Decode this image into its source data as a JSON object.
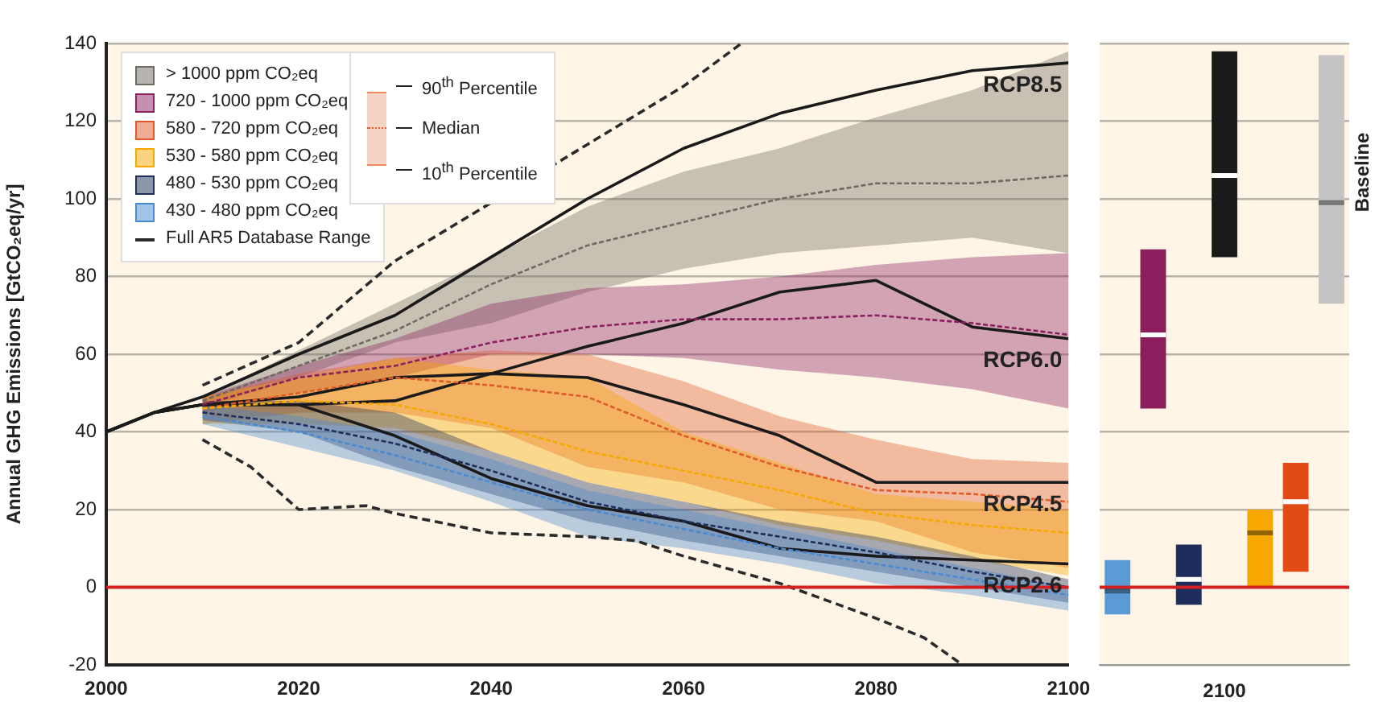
{
  "chart_data": [
    {
      "type": "line",
      "ylabel": "Annual GHG Emissions [GtCO₂eq/yr]",
      "xlim": [
        2000,
        2100
      ],
      "xticks": [
        2000,
        2020,
        2040,
        2060,
        2080,
        2100
      ],
      "ylim": [
        -20,
        140
      ],
      "yticks": [
        -20,
        0,
        20,
        40,
        60,
        80,
        100,
        120,
        140
      ],
      "grid": "y",
      "legend": "top left",
      "marker": "none",
      "annotations": [
        "90$^{th}$ Percentile",
        "Median",
        "10$^{th}$ Percentile"
      ],
      "ref_lines": [
        {
          "axis": "y",
          "value": 0,
          "color": "#d42020"
        }
      ],
      "series": [
        {
          "name": "> 1000 ppm CO₂eq",
          "color": "#6e6a62",
          "line_style": "dotted",
          "x": [
            2010,
            2020,
            2030,
            2040,
            2050,
            2060,
            2070,
            2080,
            2090,
            2100
          ],
          "values": [
            48,
            57,
            66,
            78,
            88,
            94,
            100,
            104,
            104,
            106
          ],
          "lower": [
            46,
            54,
            63,
            68,
            76,
            82,
            86,
            88,
            90,
            86
          ],
          "upper": [
            49,
            61,
            73,
            85,
            98,
            107,
            113,
            121,
            128,
            138
          ]
        },
        {
          "name": "720 - 1000 ppm CO₂eq",
          "color": "#8b2060",
          "line_style": "dotted",
          "x": [
            2010,
            2020,
            2030,
            2040,
            2050,
            2060,
            2070,
            2080,
            2090,
            2100
          ],
          "values": [
            47,
            54,
            57,
            63,
            67,
            69,
            69,
            70,
            68,
            65
          ],
          "lower": [
            45,
            50,
            54,
            60,
            60,
            59,
            56,
            54,
            51,
            46
          ],
          "upper": [
            49,
            57,
            64,
            73,
            77,
            78,
            80,
            83,
            85,
            86
          ]
        },
        {
          "name": "580 - 720 ppm CO₂eq",
          "color": "#e05a2a",
          "line_style": "dotted",
          "x": [
            2010,
            2020,
            2030,
            2040,
            2050,
            2060,
            2070,
            2080,
            2090,
            2100
          ],
          "values": [
            46,
            50,
            54,
            52,
            49,
            39,
            31,
            25,
            24,
            22
          ],
          "lower": [
            42,
            45,
            45,
            41,
            31,
            27,
            20,
            17,
            9,
            5
          ],
          "upper": [
            49,
            55,
            59,
            61,
            60,
            53,
            44,
            38,
            33,
            32
          ]
        },
        {
          "name": "530 - 580 ppm CO₂eq",
          "color": "#f5a800",
          "line_style": "dotted",
          "x": [
            2010,
            2020,
            2030,
            2040,
            2050,
            2060,
            2070,
            2080,
            2090,
            2100
          ],
          "values": [
            46,
            48,
            47,
            42,
            35,
            30,
            25,
            19,
            16,
            14
          ],
          "lower": [
            42,
            42,
            41,
            35,
            27,
            22,
            16,
            12,
            7,
            3
          ],
          "upper": [
            49,
            54,
            59,
            56,
            54,
            40,
            32,
            24,
            22,
            20
          ]
        },
        {
          "name": "480 - 530 ppm CO₂eq",
          "color": "#1e2d5a",
          "line_style": "dotted",
          "x": [
            2010,
            2020,
            2030,
            2040,
            2050,
            2060,
            2070,
            2080,
            2090,
            2100
          ],
          "values": [
            45,
            42,
            37,
            30,
            22,
            17,
            13,
            9,
            4,
            0
          ],
          "lower": [
            43,
            40,
            31,
            24,
            17,
            12,
            8,
            4,
            0,
            -4
          ],
          "upper": [
            48,
            48,
            45,
            35,
            27,
            22,
            17,
            13,
            8,
            2
          ]
        },
        {
          "name": "430 - 480 ppm CO₂eq",
          "color": "#4a8ad0",
          "line_style": "dotted",
          "x": [
            2010,
            2020,
            2030,
            2040,
            2050,
            2060,
            2070,
            2080,
            2090,
            2100
          ],
          "values": [
            44,
            40,
            34,
            27,
            20,
            15,
            10,
            6,
            2,
            -2
          ],
          "lower": [
            42,
            36,
            30,
            22,
            13,
            10,
            6,
            1,
            -2,
            -6
          ],
          "upper": [
            47,
            44,
            40,
            33,
            25,
            20,
            15,
            10,
            5,
            0
          ]
        },
        {
          "name": "Full AR5 Database Range",
          "color": "#2a2a2a",
          "line_style": "dashed",
          "x": [
            2010,
            2020,
            2030,
            2040,
            2050,
            2060,
            2066
          ],
          "values": [
            52,
            63,
            84,
            99,
            114,
            129,
            140
          ]
        },
        {
          "color": "#2a2a2a",
          "line_style": "dashed",
          "x": [
            2010,
            2015,
            2020,
            2027,
            2030,
            2040,
            2050,
            2055,
            2060,
            2070,
            2080,
            2085,
            2089
          ],
          "values": [
            38,
            31,
            20,
            21,
            19,
            14,
            13,
            12,
            8,
            1,
            -8,
            -13,
            -20
          ]
        },
        {
          "name": "RCP8.5",
          "color": "#1a1a1a",
          "line_style": "solid",
          "x": [
            2000,
            2005,
            2010,
            2020,
            2030,
            2040,
            2050,
            2060,
            2070,
            2080,
            2090,
            2100
          ],
          "values": [
            40,
            45,
            49,
            60,
            70,
            85,
            100,
            113,
            122,
            128,
            133,
            135
          ]
        },
        {
          "name": "RCP6.0",
          "color": "#1a1a1a",
          "line_style": "solid",
          "x": [
            2000,
            2005,
            2010,
            2020,
            2030,
            2040,
            2050,
            2060,
            2070,
            2080,
            2090,
            2100
          ],
          "values": [
            40,
            45,
            47,
            47,
            48,
            55,
            62,
            68,
            76,
            79,
            67,
            64
          ]
        },
        {
          "name": "RCP4.5",
          "color": "#1a1a1a",
          "line_style": "solid",
          "x": [
            2000,
            2005,
            2010,
            2020,
            2030,
            2040,
            2050,
            2060,
            2070,
            2080,
            2090,
            2100
          ],
          "values": [
            40,
            45,
            47,
            49,
            54,
            55,
            54,
            47,
            39,
            27,
            27,
            27
          ]
        },
        {
          "name": "RCP2.6",
          "color": "#1a1a1a",
          "line_style": "solid",
          "x": [
            2000,
            2005,
            2010,
            2020,
            2030,
            2040,
            2050,
            2060,
            2070,
            2080,
            2090,
            2100
          ],
          "values": [
            40,
            45,
            47,
            47,
            39,
            28,
            21,
            17,
            10,
            8,
            7,
            6
          ]
        }
      ]
    },
    {
      "type": "bar",
      "xlabel": "2100",
      "categories": [
        null,
        null,
        null,
        null,
        null,
        null,
        null
      ],
      "ylim": [
        -20,
        140
      ],
      "yticks": [
        -20,
        0,
        20,
        40,
        60,
        80,
        100,
        120,
        140
      ],
      "grid": "y",
      "tick_labels": false,
      "stacked": true,
      "annotations": [
        "Baseline"
      ],
      "ref_lines": [
        {
          "axis": "y",
          "value": 0,
          "color": "#d42020"
        }
      ],
      "series": [
        {
          "values": [
            6,
            19,
            6.5,
            21,
            14,
            18,
            26
          ],
          "base": [
            -7,
            46,
            -4.5,
            85,
            0,
            4,
            73
          ],
          "colors": [
            "#5b9bd5",
            "#8b1e5c",
            "#1f2d5c",
            "#1a1a1a",
            "#f6a800",
            "#e04a14",
            "#c4c4c4"
          ]
        },
        {
          "values": [
            8,
            22,
            9,
            32,
            6,
            10,
            38
          ],
          "colors": [
            "#5b9bd5",
            "#8b1e5c",
            "#1f2d5c",
            "#1a1a1a",
            "#f6a800",
            "#e04a14",
            "#c4c4c4"
          ]
        }
      ]
    }
  ]
}
